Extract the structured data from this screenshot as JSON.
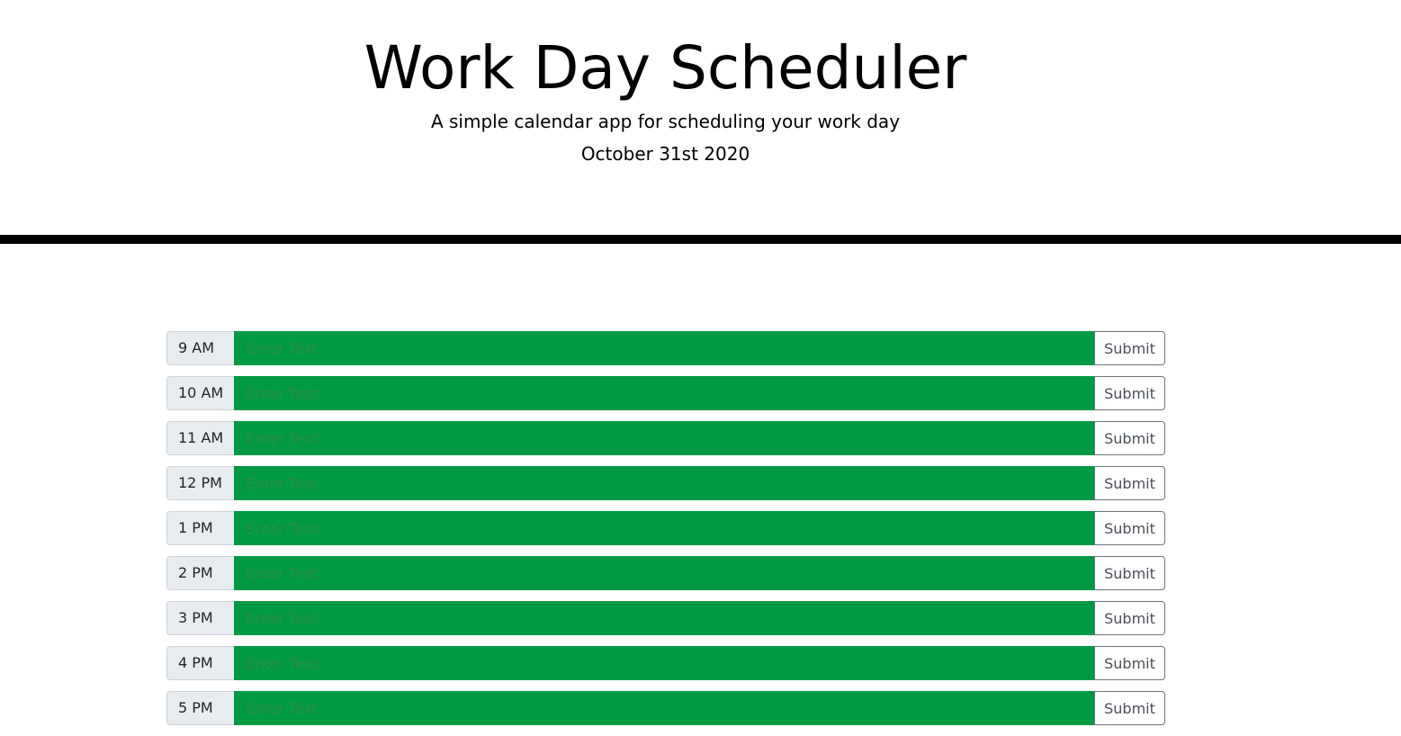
{
  "header": {
    "title": "Work Day Scheduler",
    "lead": "A simple calendar app for scheduling your work day",
    "date": "October 31st 2020"
  },
  "colors": {
    "present_future_block": "#009a44",
    "hour_label_bg": "#e9ecef",
    "divider": "#000000"
  },
  "schedule": {
    "rows": [
      {
        "hour": "9 AM",
        "placeholder": "Enter Text",
        "value": "",
        "submit_label": "Submit"
      },
      {
        "hour": "10 AM",
        "placeholder": "Enter Text",
        "value": "",
        "submit_label": "Submit"
      },
      {
        "hour": "11 AM",
        "placeholder": "Enter Text",
        "value": "",
        "submit_label": "Submit"
      },
      {
        "hour": "12 PM",
        "placeholder": "Enter Text",
        "value": "",
        "submit_label": "Submit"
      },
      {
        "hour": "1 PM",
        "placeholder": "Enter Text",
        "value": "",
        "submit_label": "Submit"
      },
      {
        "hour": "2 PM",
        "placeholder": "Enter Text",
        "value": "",
        "submit_label": "Submit"
      },
      {
        "hour": "3 PM",
        "placeholder": "Enter Text",
        "value": "",
        "submit_label": "Submit"
      },
      {
        "hour": "4 PM",
        "placeholder": "Enter Text",
        "value": "",
        "submit_label": "Submit"
      },
      {
        "hour": "5 PM",
        "placeholder": "Enter Text",
        "value": "",
        "submit_label": "Submit"
      }
    ]
  }
}
